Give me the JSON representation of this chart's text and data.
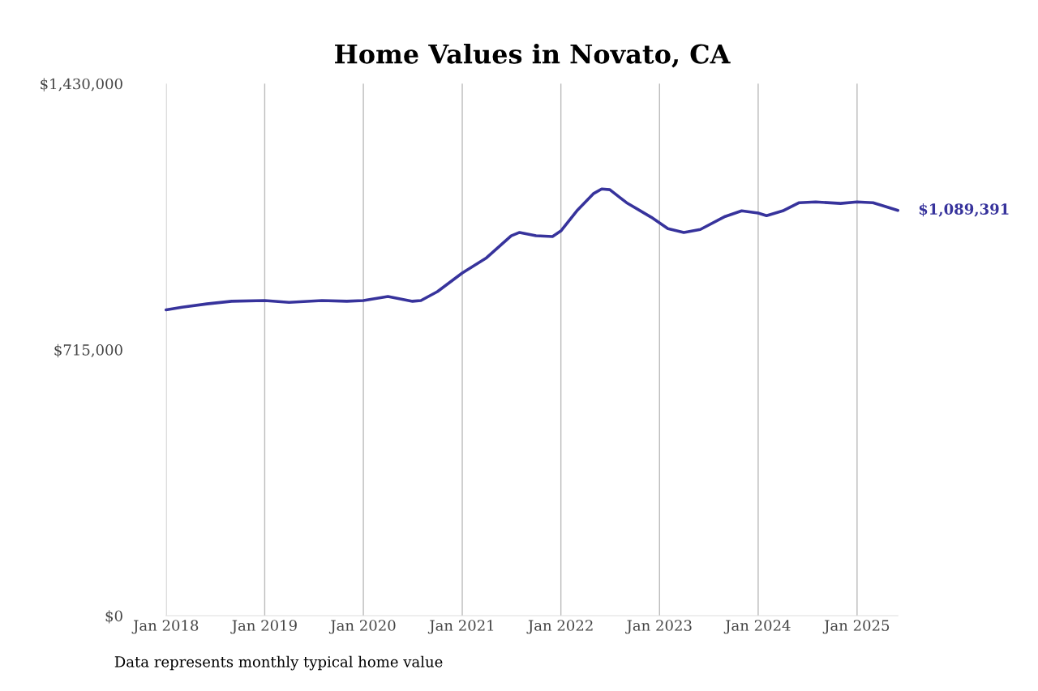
{
  "chart_data": {
    "type": "line",
    "title": "Home Values in Novato, CA",
    "x": [
      "2018-01",
      "2018-03",
      "2018-06",
      "2018-09",
      "2019-01",
      "2019-04",
      "2019-08",
      "2019-11",
      "2020-01",
      "2020-04",
      "2020-07",
      "2020-08",
      "2020-10",
      "2021-01",
      "2021-04",
      "2021-07",
      "2021-08",
      "2021-10",
      "2021-12",
      "2022-01",
      "2022-03",
      "2022-05",
      "2022-06",
      "2022-07",
      "2022-09",
      "2022-12",
      "2023-02",
      "2023-04",
      "2023-06",
      "2023-09",
      "2023-11",
      "2024-01",
      "2024-02",
      "2024-04",
      "2024-06",
      "2024-08",
      "2024-11",
      "2025-01",
      "2025-03",
      "2025-06"
    ],
    "series": [
      {
        "color": "#37339c",
        "values": [
          822000,
          829000,
          838000,
          845000,
          847000,
          842000,
          847000,
          845000,
          847000,
          858000,
          845000,
          847000,
          871000,
          921000,
          962000,
          1021000,
          1030000,
          1021000,
          1019000,
          1034000,
          1088000,
          1134000,
          1147000,
          1145000,
          1110000,
          1071000,
          1040000,
          1030000,
          1038000,
          1073000,
          1088000,
          1082000,
          1075000,
          1088000,
          1110000,
          1112000,
          1108000,
          1112000,
          1110000,
          1089391
        ]
      }
    ],
    "xticks": [
      {
        "value": "2018-01-01",
        "label": "Jan 2018"
      },
      {
        "value": "2019-01-01",
        "label": "Jan 2019"
      },
      {
        "value": "2020-01-01",
        "label": "Jan 2020"
      },
      {
        "value": "2021-01-01",
        "label": "Jan 2021"
      },
      {
        "value": "2022-01-01",
        "label": "Jan 2022"
      },
      {
        "value": "2023-01-01",
        "label": "Jan 2023"
      },
      {
        "value": "2024-01-01",
        "label": "Jan 2024"
      },
      {
        "value": "2025-01-01",
        "label": "Jan 2025"
      }
    ],
    "xlim": [
      "2018-01",
      "2025-06"
    ],
    "ylim": [
      0,
      1430000
    ],
    "yticks": [
      {
        "value": 0,
        "label": "$0"
      },
      {
        "value": 715000,
        "label": "$715,000"
      },
      {
        "value": 1430000,
        "label": "$1,430,000"
      }
    ],
    "grid": "x",
    "marker": "none",
    "line_style": "solid",
    "annotations": [
      {
        "text": "$1,089,391",
        "x": "2025-06",
        "y": 1089391
      },
      "Data represents monthly typical home value"
    ]
  }
}
